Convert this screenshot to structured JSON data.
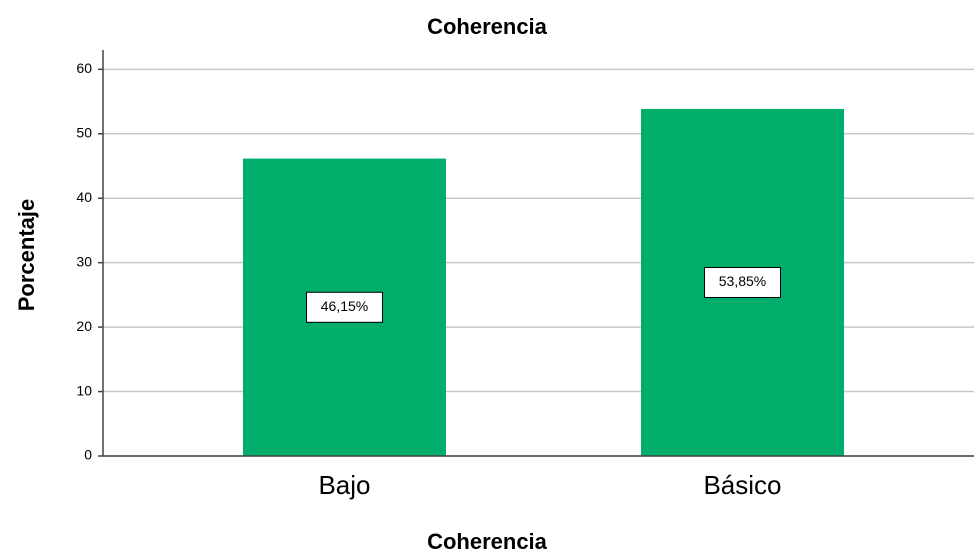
{
  "chart_data": {
    "type": "bar",
    "title": "Coherencia",
    "x_label": "Coherencia",
    "y_label": "Porcentaje",
    "categories": [
      "Bajo",
      "Básico"
    ],
    "values": [
      46.15,
      53.85
    ],
    "value_labels": [
      "46,15%",
      "53,85%"
    ],
    "color": "#00ad6a",
    "ylim": [
      0,
      63
    ],
    "yticks": [
      0,
      10,
      20,
      30,
      40,
      50,
      60
    ],
    "grid": true
  }
}
